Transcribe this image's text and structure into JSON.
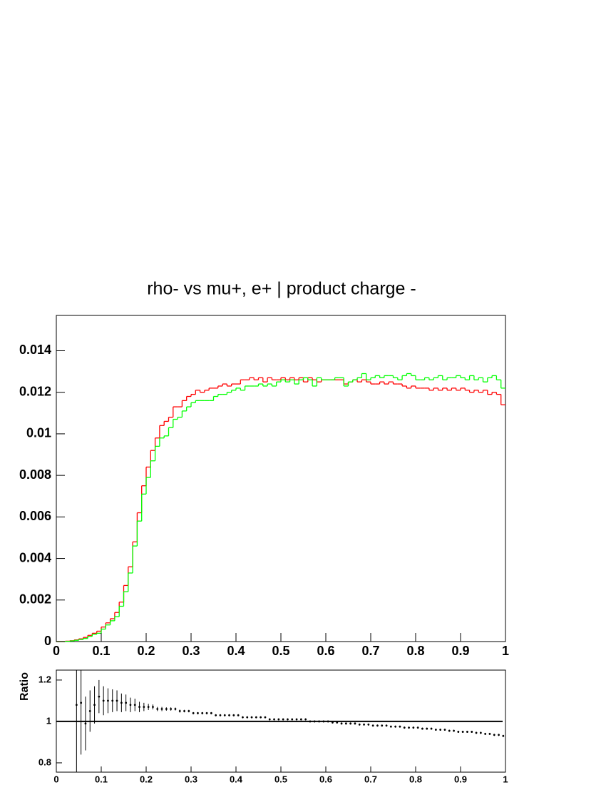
{
  "chart_data": [
    {
      "type": "histogram",
      "title": "rho- vs mu+, e+ | product charge -",
      "bins": [
        0,
        0.01,
        0.02,
        0.03,
        0.04,
        0.05,
        0.06,
        0.07,
        0.08,
        0.09,
        0.1,
        0.11,
        0.12,
        0.13,
        0.14,
        0.15,
        0.16,
        0.17,
        0.18,
        0.19,
        0.2,
        0.21,
        0.22,
        0.23,
        0.24,
        0.25,
        0.26,
        0.27,
        0.28,
        0.29,
        0.3,
        0.31,
        0.32,
        0.33,
        0.34,
        0.35,
        0.36,
        0.37,
        0.38,
        0.39,
        0.4,
        0.41,
        0.42,
        0.43,
        0.44,
        0.45,
        0.46,
        0.47,
        0.48,
        0.49,
        0.5,
        0.51,
        0.52,
        0.53,
        0.54,
        0.55,
        0.56,
        0.57,
        0.58,
        0.59,
        0.6,
        0.61,
        0.62,
        0.63,
        0.64,
        0.65,
        0.66,
        0.67,
        0.68,
        0.69,
        0.7,
        0.71,
        0.72,
        0.73,
        0.74,
        0.75,
        0.76,
        0.77,
        0.78,
        0.79,
        0.8,
        0.81,
        0.82,
        0.83,
        0.84,
        0.85,
        0.86,
        0.87,
        0.88,
        0.89,
        0.9,
        0.91,
        0.92,
        0.93,
        0.94,
        0.95,
        0.96,
        0.97,
        0.98,
        0.99,
        1
      ],
      "series": [
        {
          "color": "#ff0000",
          "values": [
            0,
            0,
            2e-05,
            4e-05,
            8e-05,
            0.00013,
            0.0002,
            0.0003,
            0.0004,
            0.0005,
            0.0007,
            0.0009,
            0.0011,
            0.0014,
            0.0019,
            0.0027,
            0.0036,
            0.0048,
            0.0062,
            0.0075,
            0.0084,
            0.0092,
            0.0098,
            0.0104,
            0.0106,
            0.0108,
            0.0113,
            0.0113,
            0.0116,
            0.0118,
            0.0119,
            0.0121,
            0.012,
            0.0121,
            0.0122,
            0.0122,
            0.0123,
            0.0124,
            0.0123,
            0.0124,
            0.0124,
            0.0126,
            0.0126,
            0.0127,
            0.0126,
            0.0127,
            0.0125,
            0.0127,
            0.0126,
            0.0126,
            0.0127,
            0.0126,
            0.0127,
            0.0126,
            0.0127,
            0.0125,
            0.0127,
            0.0126,
            0.0125,
            0.0126,
            0.0126,
            0.0126,
            0.0126,
            0.0126,
            0.0124,
            0.0125,
            0.0126,
            0.0125,
            0.0126,
            0.0125,
            0.0124,
            0.0124,
            0.0125,
            0.0124,
            0.0125,
            0.0124,
            0.0124,
            0.0123,
            0.0122,
            0.0123,
            0.0122,
            0.0122,
            0.0122,
            0.0121,
            0.0122,
            0.0121,
            0.0122,
            0.0121,
            0.0122,
            0.0121,
            0.0122,
            0.0121,
            0.012,
            0.0121,
            0.012,
            0.0121,
            0.0119,
            0.012,
            0.0119,
            0.0114
          ]
        },
        {
          "color": "#00ff00",
          "values": [
            0,
            0,
            1e-05,
            3e-05,
            6e-05,
            0.0001,
            0.00015,
            0.00025,
            0.00035,
            0.0004,
            0.0006,
            0.0008,
            0.001,
            0.0012,
            0.0017,
            0.0024,
            0.0033,
            0.0046,
            0.0058,
            0.0071,
            0.0079,
            0.0087,
            0.0094,
            0.0098,
            0.0099,
            0.0103,
            0.0107,
            0.0108,
            0.0111,
            0.0113,
            0.0115,
            0.0116,
            0.0116,
            0.0116,
            0.0116,
            0.0118,
            0.0119,
            0.0119,
            0.012,
            0.0121,
            0.0122,
            0.0121,
            0.0123,
            0.0123,
            0.0123,
            0.0124,
            0.0123,
            0.0124,
            0.0123,
            0.0125,
            0.0126,
            0.0125,
            0.0126,
            0.0124,
            0.0126,
            0.0127,
            0.0126,
            0.0123,
            0.0127,
            0.0126,
            0.0126,
            0.0126,
            0.0127,
            0.0127,
            0.0123,
            0.0125,
            0.0126,
            0.0127,
            0.0129,
            0.0126,
            0.0127,
            0.0128,
            0.0127,
            0.0128,
            0.0128,
            0.0127,
            0.0126,
            0.0128,
            0.0129,
            0.0128,
            0.0126,
            0.0126,
            0.0127,
            0.0126,
            0.0127,
            0.0128,
            0.0126,
            0.0127,
            0.0127,
            0.0128,
            0.0127,
            0.0126,
            0.0128,
            0.0126,
            0.0127,
            0.0125,
            0.0127,
            0.0128,
            0.0126,
            0.0122
          ]
        }
      ],
      "xlim": [
        0,
        1
      ],
      "xticks": [
        0,
        0.1,
        0.2,
        0.3,
        0.4,
        0.5,
        0.6,
        0.7,
        0.8,
        0.9,
        1
      ],
      "ylim": [
        0,
        0.0157
      ],
      "yticks": [
        0,
        0.002,
        0.004,
        0.006,
        0.008,
        0.01,
        0.012,
        0.014
      ]
    },
    {
      "type": "errorbar",
      "ylabel": "Ratio",
      "x": [
        0.045,
        0.055,
        0.065,
        0.075,
        0.085,
        0.095,
        0.105,
        0.115,
        0.125,
        0.135,
        0.145,
        0.155,
        0.165,
        0.175,
        0.185,
        0.195,
        0.205,
        0.215,
        0.225,
        0.235,
        0.245,
        0.255,
        0.265,
        0.275,
        0.285,
        0.295,
        0.305,
        0.315,
        0.325,
        0.335,
        0.345,
        0.355,
        0.365,
        0.375,
        0.385,
        0.395,
        0.405,
        0.415,
        0.425,
        0.435,
        0.445,
        0.455,
        0.465,
        0.475,
        0.485,
        0.495,
        0.505,
        0.515,
        0.525,
        0.535,
        0.545,
        0.555,
        0.565,
        0.575,
        0.585,
        0.595,
        0.605,
        0.615,
        0.625,
        0.635,
        0.645,
        0.655,
        0.665,
        0.675,
        0.685,
        0.695,
        0.705,
        0.715,
        0.725,
        0.735,
        0.745,
        0.755,
        0.765,
        0.775,
        0.785,
        0.795,
        0.805,
        0.815,
        0.825,
        0.835,
        0.845,
        0.855,
        0.865,
        0.875,
        0.885,
        0.895,
        0.905,
        0.915,
        0.925,
        0.935,
        0.945,
        0.955,
        0.965,
        0.975,
        0.985,
        0.995
      ],
      "values": [
        1.08,
        1.09,
        0.99,
        1.05,
        1.08,
        1.12,
        1.1,
        1.1,
        1.1,
        1.1,
        1.09,
        1.09,
        1.08,
        1.08,
        1.07,
        1.07,
        1.07,
        1.07,
        1.06,
        1.06,
        1.06,
        1.06,
        1.06,
        1.05,
        1.05,
        1.05,
        1.04,
        1.04,
        1.04,
        1.04,
        1.04,
        1.03,
        1.03,
        1.03,
        1.03,
        1.03,
        1.03,
        1.02,
        1.02,
        1.02,
        1.02,
        1.02,
        1.02,
        1.01,
        1.01,
        1.01,
        1.01,
        1.01,
        1.01,
        1.01,
        1.01,
        1.01,
        1,
        1,
        1,
        1,
        1,
        0.995,
        0.995,
        0.99,
        0.99,
        0.99,
        0.99,
        0.985,
        0.985,
        0.985,
        0.98,
        0.98,
        0.98,
        0.98,
        0.975,
        0.975,
        0.975,
        0.97,
        0.97,
        0.97,
        0.97,
        0.965,
        0.965,
        0.965,
        0.96,
        0.96,
        0.96,
        0.955,
        0.955,
        0.95,
        0.95,
        0.95,
        0.95,
        0.945,
        0.945,
        0.94,
        0.94,
        0.935,
        0.935,
        0.93
      ],
      "errors": [
        0.34,
        0.25,
        0.13,
        0.1,
        0.09,
        0.08,
        0.07,
        0.06,
        0.055,
        0.05,
        0.045,
        0.04,
        0.035,
        0.03,
        0.025,
        0.02,
        0.015,
        0.012,
        0.01,
        0.01,
        0.008,
        0.008,
        0.007,
        0.007,
        0.006,
        0.006,
        0.005,
        0.005,
        0.005,
        0.005,
        0.005,
        0.005,
        0.005,
        0.005,
        0.005,
        0.005,
        0.005,
        0.005,
        0.005,
        0.005,
        0.005,
        0.005,
        0.005,
        0.005,
        0.005,
        0.005,
        0.005,
        0.005,
        0.005,
        0.005,
        0.005,
        0.005,
        0.005,
        0.005,
        0.005,
        0.005,
        0.005,
        0.005,
        0.005,
        0.005,
        0.005,
        0.005,
        0.005,
        0.005,
        0.005,
        0.005,
        0.005,
        0.005,
        0.005,
        0.005,
        0.005,
        0.005,
        0.005,
        0.005,
        0.005,
        0.005,
        0.005,
        0.005,
        0.005,
        0.005,
        0.005,
        0.005,
        0.005,
        0.005,
        0.005,
        0.005,
        0.005,
        0.005,
        0.005,
        0.005,
        0.005,
        0.005,
        0.005,
        0.005,
        0.005,
        0.005
      ],
      "color": "#000000",
      "reference_line": 1,
      "xlim": [
        0,
        1
      ],
      "xticks": [
        0,
        0.1,
        0.2,
        0.3,
        0.4,
        0.5,
        0.6,
        0.7,
        0.8,
        0.9,
        1
      ],
      "ylim": [
        0.755,
        1.248
      ],
      "yticks": [
        0.8,
        1,
        1.2
      ]
    }
  ]
}
